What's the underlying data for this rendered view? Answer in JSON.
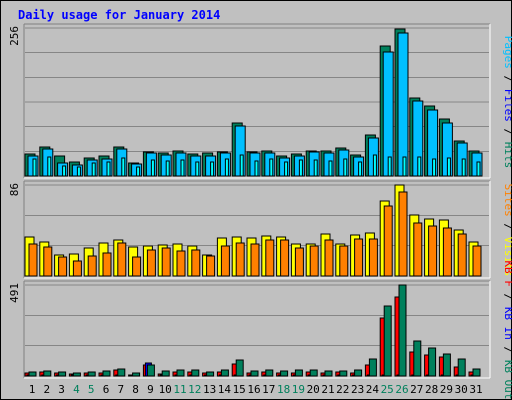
{
  "title": "Daily usage for January 2014",
  "colors": {
    "hits": "#00805c",
    "files": "#00c0ff",
    "pages": "#00ffff",
    "visits": "#ffff00",
    "sites": "#ff8000",
    "kb": "#ff0000",
    "kbin": "#0000ff",
    "kbout": "#00805c",
    "weekend_day": "#00805c",
    "weekday_day": "#000000"
  },
  "chart_data": [
    {
      "type": "bar",
      "name": "hits-files-pages",
      "ymax_label": "256",
      "ylim": [
        0,
        256
      ],
      "right_labels": [
        "Pages",
        "Files",
        "Hits"
      ],
      "categories": [
        "1",
        "2",
        "3",
        "4",
        "5",
        "6",
        "7",
        "8",
        "9",
        "10",
        "11",
        "12",
        "13",
        "14",
        "15",
        "16",
        "17",
        "18",
        "19",
        "20",
        "21",
        "22",
        "23",
        "24",
        "25",
        "26",
        "27",
        "28",
        "29",
        "30",
        "31"
      ],
      "series": [
        {
          "name": "Hits",
          "values": [
            38,
            50,
            34,
            24,
            31,
            35,
            51,
            22,
            42,
            40,
            43,
            38,
            39,
            42,
            91,
            42,
            44,
            34,
            38,
            44,
            43,
            49,
            36,
            71,
            225,
            255,
            135,
            121,
            98,
            61,
            43
          ]
        },
        {
          "name": "Files",
          "values": [
            35,
            46,
            23,
            19,
            28,
            29,
            46,
            20,
            39,
            37,
            40,
            34,
            35,
            39,
            86,
            39,
            40,
            31,
            34,
            41,
            40,
            45,
            33,
            66,
            214,
            247,
            129,
            114,
            92,
            57,
            40
          ]
        },
        {
          "name": "Pages",
          "values": [
            30,
            33,
            18,
            16,
            22,
            24,
            31,
            16,
            28,
            26,
            28,
            24,
            25,
            30,
            36,
            26,
            30,
            24,
            28,
            28,
            26,
            30,
            24,
            36,
            32,
            33,
            32,
            30,
            31,
            30,
            24
          ]
        }
      ]
    },
    {
      "type": "bar",
      "name": "visits-sites",
      "ymax_label": "86",
      "ylim": [
        0,
        86
      ],
      "right_labels": [
        "Sites",
        "Visits"
      ],
      "categories": [
        "1",
        "2",
        "3",
        "4",
        "5",
        "6",
        "7",
        "8",
        "9",
        "10",
        "11",
        "12",
        "13",
        "14",
        "15",
        "16",
        "17",
        "18",
        "19",
        "20",
        "21",
        "22",
        "23",
        "24",
        "25",
        "26",
        "27",
        "28",
        "29",
        "30",
        "31"
      ],
      "series": [
        {
          "name": "Visits",
          "values": [
            37,
            32,
            20,
            21,
            26,
            31,
            34,
            27,
            28,
            29,
            30,
            28,
            20,
            36,
            37,
            36,
            38,
            37,
            30,
            30,
            40,
            30,
            39,
            41,
            71,
            86,
            58,
            54,
            53,
            43,
            32
          ]
        },
        {
          "name": "Sites",
          "values": [
            30,
            27,
            18,
            14,
            19,
            22,
            31,
            18,
            25,
            26,
            24,
            25,
            19,
            28,
            31,
            30,
            34,
            34,
            26,
            28,
            34,
            28,
            35,
            35,
            66,
            79,
            50,
            47,
            45,
            40,
            28
          ]
        }
      ]
    },
    {
      "type": "bar",
      "name": "kbytes",
      "ymax_label": "491",
      "ylim": [
        0,
        491
      ],
      "right_labels": [
        "KB F",
        "KB In",
        "KB Out"
      ],
      "categories": [
        "1",
        "2",
        "3",
        "4",
        "5",
        "6",
        "7",
        "8",
        "9",
        "10",
        "11",
        "12",
        "13",
        "14",
        "15",
        "16",
        "17",
        "18",
        "19",
        "20",
        "21",
        "22",
        "23",
        "24",
        "25",
        "26",
        "27",
        "28",
        "29",
        "30",
        "31"
      ],
      "series": [
        {
          "name": "KB F",
          "values": [
            18,
            20,
            14,
            10,
            15,
            16,
            30,
            6,
            60,
            12,
            20,
            20,
            15,
            20,
            65,
            16,
            22,
            16,
            18,
            20,
            16,
            20,
            16,
            60,
            315,
            425,
            130,
            115,
            100,
            50,
            22
          ]
        },
        {
          "name": "KB In",
          "values": [
            4,
            4,
            4,
            4,
            4,
            4,
            4,
            4,
            70,
            4,
            4,
            4,
            4,
            4,
            6,
            4,
            4,
            4,
            4,
            4,
            4,
            4,
            4,
            4,
            4,
            4,
            4,
            4,
            4,
            4,
            4
          ]
        },
        {
          "name": "KB Out",
          "values": [
            22,
            26,
            24,
            16,
            22,
            26,
            40,
            14,
            60,
            28,
            30,
            30,
            22,
            30,
            85,
            26,
            30,
            26,
            30,
            30,
            28,
            26,
            30,
            90,
            380,
            491,
            190,
            150,
            120,
            90,
            40
          ]
        }
      ]
    }
  ],
  "right_axis": {
    "panel1": [
      {
        "text": "Pages",
        "color": "#00c0ff"
      },
      {
        "text": " / ",
        "color": "#000000"
      },
      {
        "text": "Files",
        "color": "#0000ff"
      },
      {
        "text": " / ",
        "color": "#000000"
      },
      {
        "text": "Hits",
        "color": "#00805c"
      }
    ],
    "panel2": [
      {
        "text": "Sites",
        "color": "#ff8000"
      },
      {
        "text": " / ",
        "color": "#000000"
      },
      {
        "text": "Visits",
        "color": "#ffff00"
      }
    ],
    "panel3": [
      {
        "text": "KB F",
        "color": "#ff0000"
      },
      {
        "text": " / ",
        "color": "#000000"
      },
      {
        "text": "KB In",
        "color": "#0000ff"
      },
      {
        "text": " / ",
        "color": "#000000"
      },
      {
        "text": "KB Out",
        "color": "#00805c"
      }
    ]
  },
  "weekend_days": [
    "4",
    "5",
    "11",
    "12",
    "18",
    "19",
    "25",
    "26"
  ]
}
